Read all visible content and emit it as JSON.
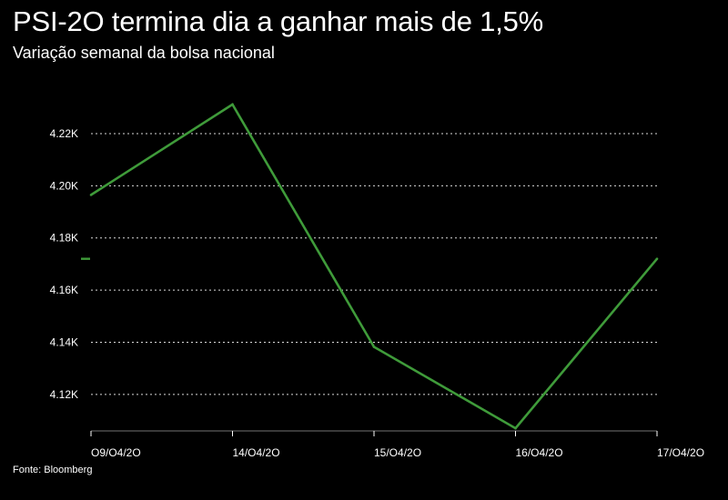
{
  "header": {
    "title": "PSI-2O termina dia a ganhar mais de 1,5%",
    "subtitle": "Variação semanal da bolsa nacional"
  },
  "footer": {
    "source": "Fonte: Bloomberg"
  },
  "colors": {
    "background": "#000000",
    "line": "#3f9b3a",
    "grid": "#ffffff",
    "text": "#ffffff"
  },
  "chart_data": {
    "type": "line",
    "title": "PSI-2O termina dia a ganhar mais de 1,5%",
    "subtitle": "Variação semanal da bolsa nacional",
    "xlabel": "",
    "ylabel": "",
    "categories": [
      "O9/O4/2O",
      "14/O4/2O",
      "15/O4/2O",
      "16/O4/2O",
      "17/O4/2O"
    ],
    "series": [
      {
        "values": [
          4196.5,
          4231.2,
          4138.2,
          4107.0,
          4172.0
        ]
      }
    ],
    "y_ticks": [
      4120,
      4140,
      4160,
      4180,
      4200,
      4220
    ],
    "y_tick_labels": [
      "4.12K",
      "4.14K",
      "4.16K",
      "4.18K",
      "4.20K",
      "4.22K"
    ],
    "ylim": [
      4106,
      4231.5
    ],
    "grid": "horizontal dotted",
    "legend": "none",
    "current_value_marker": 4172.0
  }
}
